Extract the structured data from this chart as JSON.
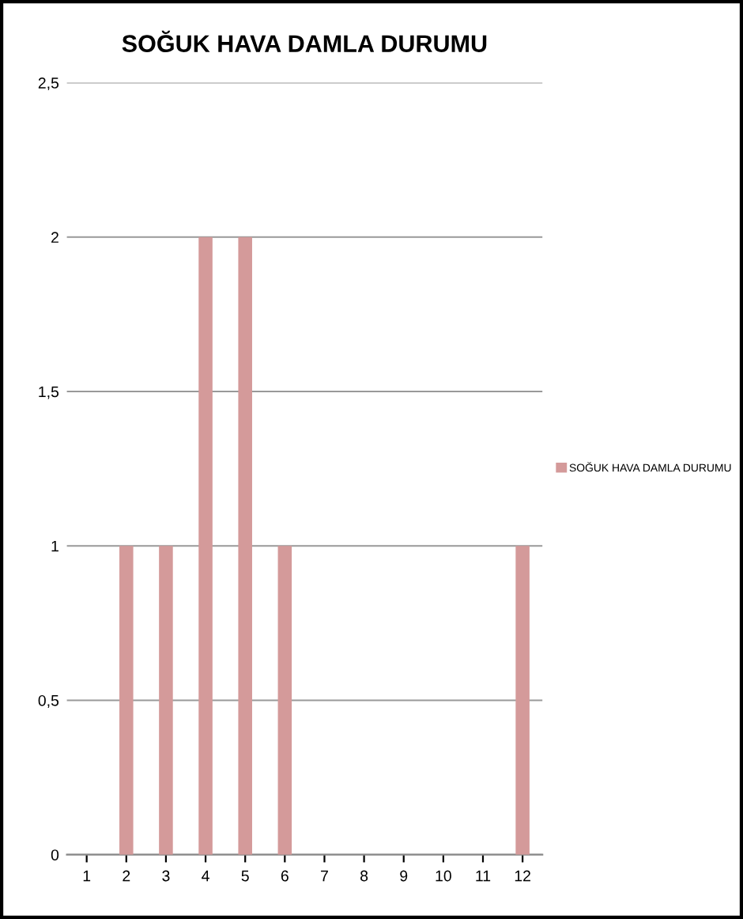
{
  "chart_data": {
    "type": "bar",
    "title": "SOĞUK HAVA DAMLA DURUMU",
    "categories": [
      "1",
      "2",
      "3",
      "4",
      "5",
      "6",
      "7",
      "8",
      "9",
      "10",
      "11",
      "12"
    ],
    "series": [
      {
        "name": "SOĞUK HAVA DAMLA DURUMU",
        "color": "#d49a9a",
        "values": [
          0,
          1,
          1,
          2,
          2,
          1,
          0,
          0,
          0,
          0,
          0,
          1
        ]
      }
    ],
    "ylim": [
      0,
      2.5
    ],
    "yticks": [
      0,
      {
        "value": 0.5,
        "label": "0,5"
      },
      1,
      {
        "value": 1.5,
        "label": "1,5"
      },
      2,
      {
        "value": 2.5,
        "label": "2,5"
      }
    ],
    "grid": "y",
    "legend": "right"
  }
}
